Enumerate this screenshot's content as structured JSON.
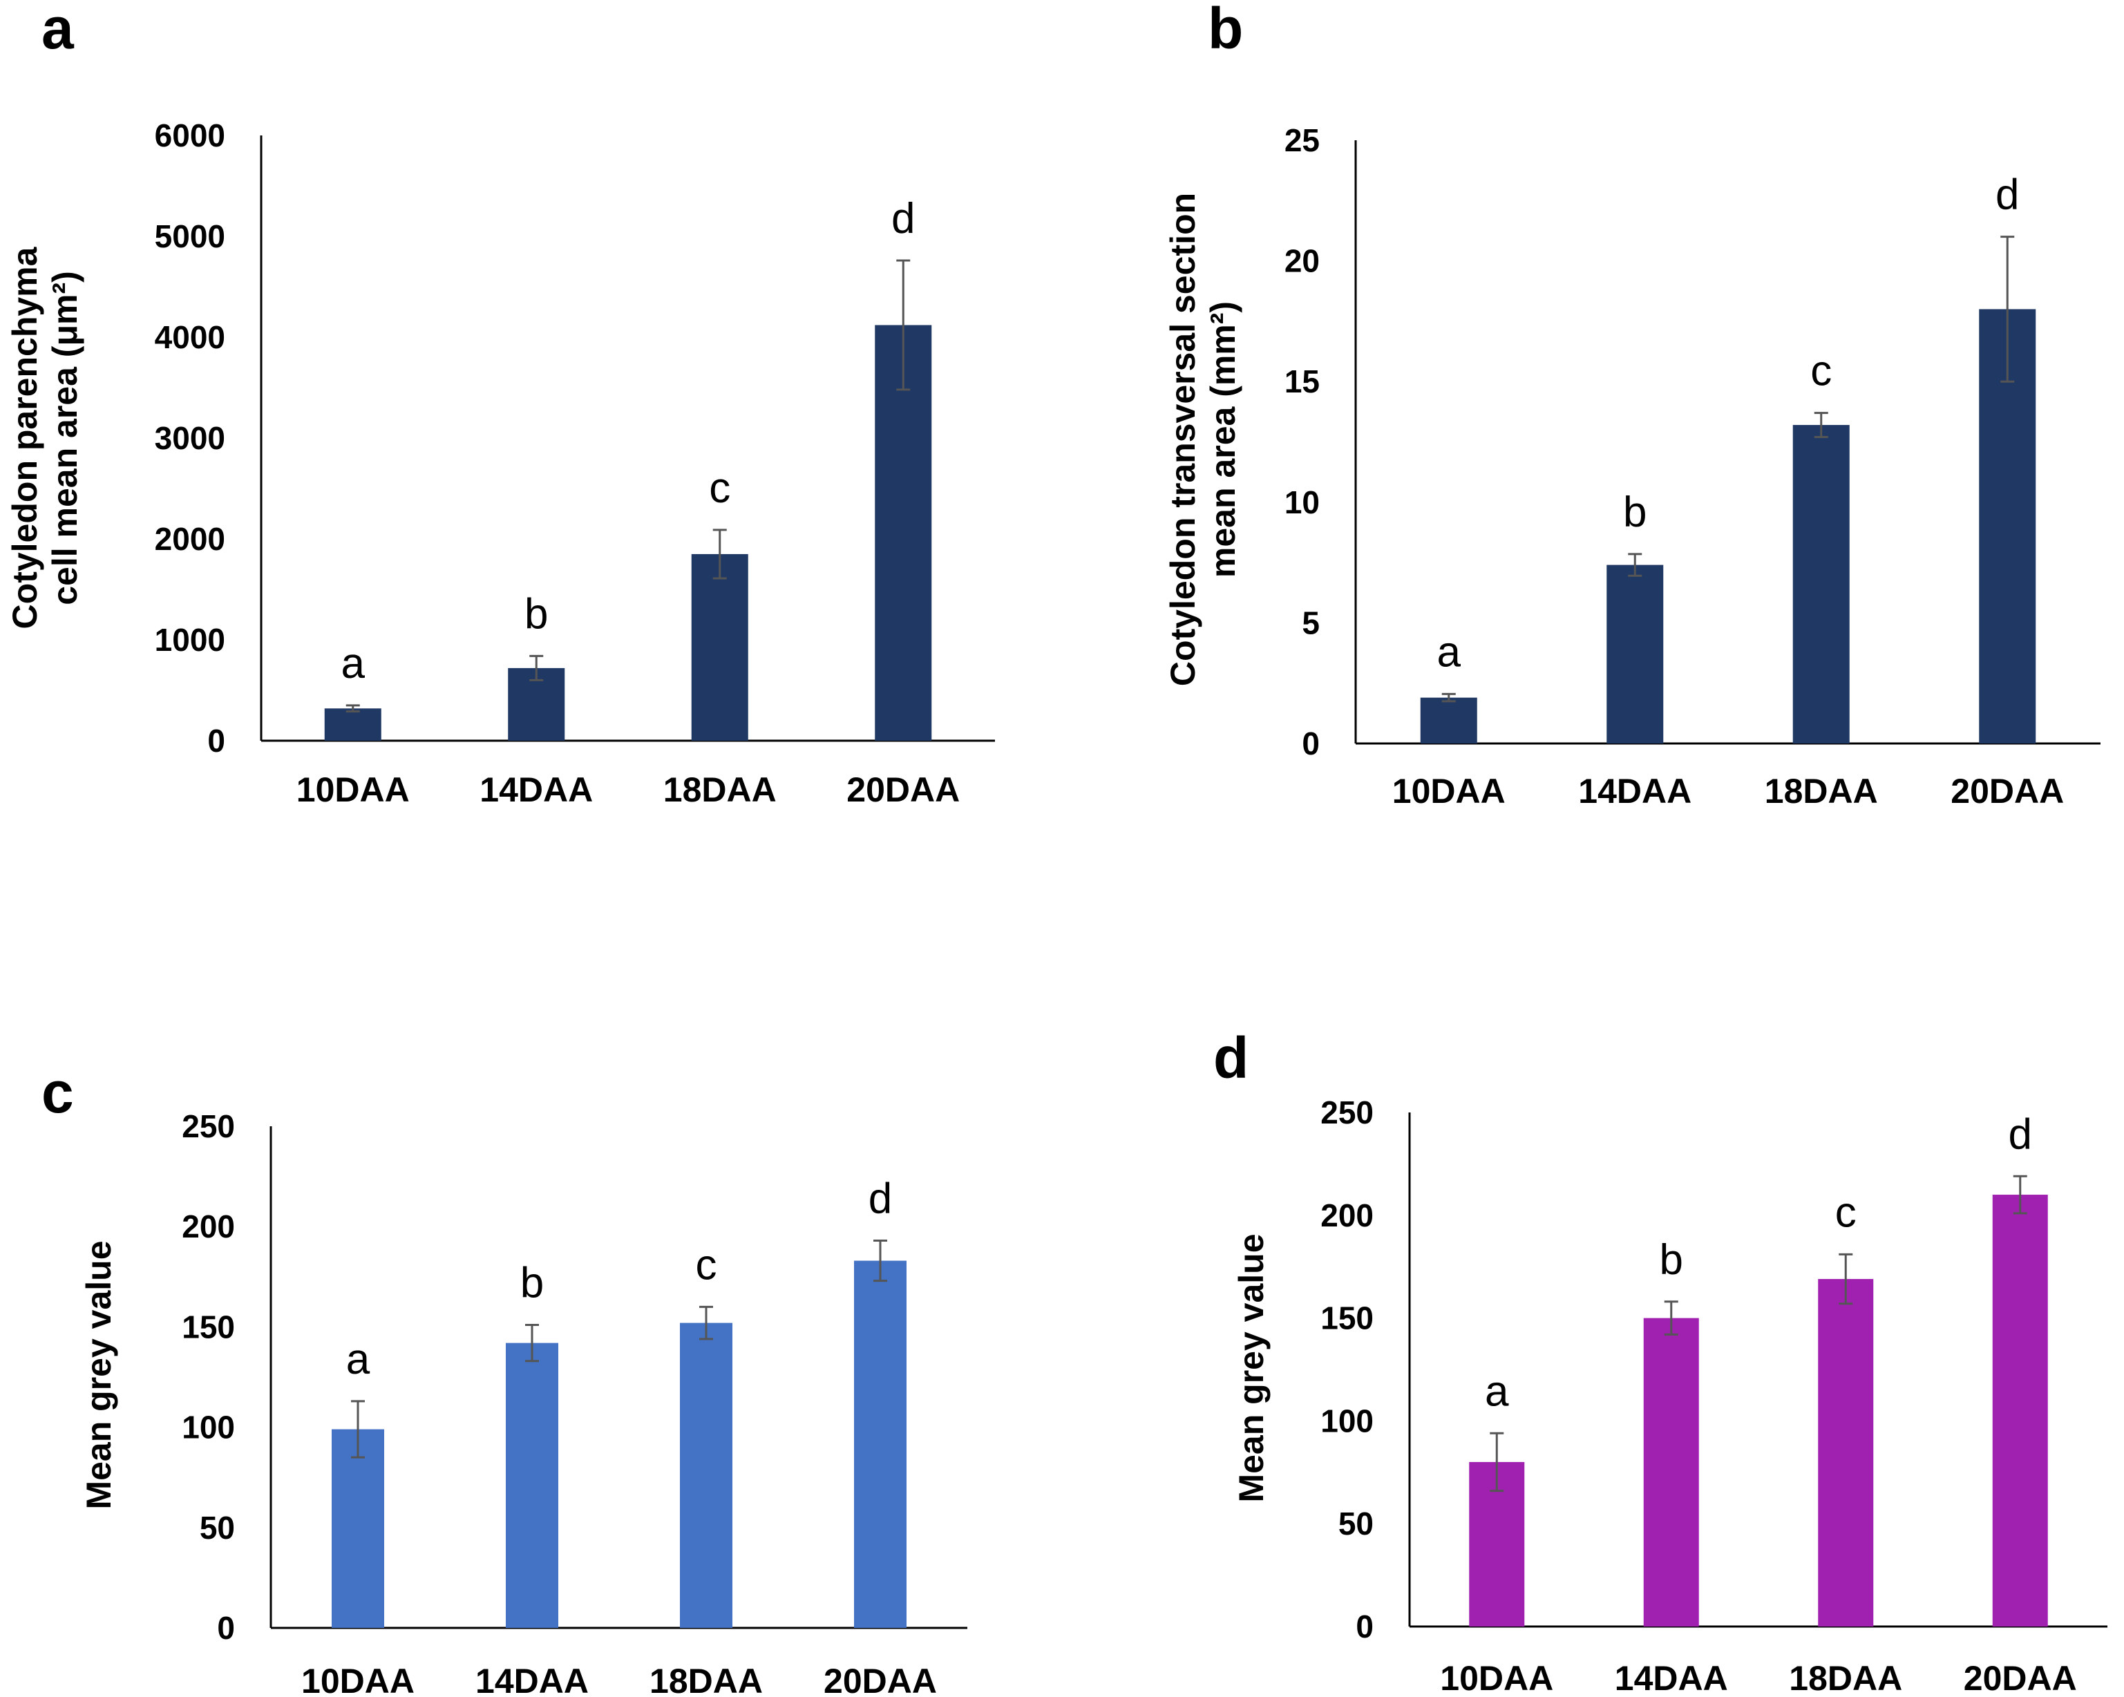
{
  "chart_data": [
    {
      "panel": "a",
      "type": "bar",
      "categories": [
        "10DAA",
        "14DAA",
        "18DAA",
        "20DAA"
      ],
      "values": [
        320,
        720,
        1850,
        4120
      ],
      "errors": [
        30,
        120,
        240,
        640
      ],
      "significance": [
        "a",
        "b",
        "c",
        "d"
      ],
      "ylabel_lines": [
        "Cotyledon parenchyma",
        "cell mean area (μm²)"
      ],
      "ylim": [
        0,
        6000
      ],
      "yticks": [
        0,
        1000,
        2000,
        3000,
        4000,
        5000,
        6000
      ],
      "color": "#203864"
    },
    {
      "panel": "b",
      "type": "bar",
      "categories": [
        "10DAA",
        "14DAA",
        "18DAA",
        "20DAA"
      ],
      "values": [
        1.9,
        7.4,
        13.2,
        18.0
      ],
      "errors": [
        0.15,
        0.45,
        0.5,
        3.0
      ],
      "significance": [
        "a",
        "b",
        "c",
        "d"
      ],
      "ylabel_lines": [
        "Cotyledon transversal section",
        "mean area (mm²)"
      ],
      "ylim": [
        0,
        25
      ],
      "yticks": [
        0,
        5,
        10,
        15,
        20,
        25
      ],
      "color": "#203864"
    },
    {
      "panel": "c",
      "type": "bar",
      "categories": [
        "10DAA",
        "14DAA",
        "18DAA",
        "20DAA"
      ],
      "values": [
        99,
        142,
        152,
        183
      ],
      "errors": [
        14,
        9,
        8,
        10
      ],
      "significance": [
        "a",
        "b",
        "c",
        "d"
      ],
      "ylabel_lines": [
        "Mean grey value"
      ],
      "ylim": [
        0,
        250
      ],
      "yticks": [
        0,
        50,
        100,
        150,
        200,
        250
      ],
      "color": "#4472c4"
    },
    {
      "panel": "d",
      "type": "bar",
      "categories": [
        "10DAA",
        "14DAA",
        "18DAA",
        "20DAA"
      ],
      "values": [
        80,
        150,
        169,
        210
      ],
      "errors": [
        14,
        8,
        12,
        9
      ],
      "significance": [
        "a",
        "b",
        "c",
        "d"
      ],
      "ylabel_lines": [
        "Mean grey value"
      ],
      "ylim": [
        0,
        250
      ],
      "yticks": [
        0,
        50,
        100,
        150,
        200,
        250
      ],
      "color": "#a020b0"
    }
  ]
}
